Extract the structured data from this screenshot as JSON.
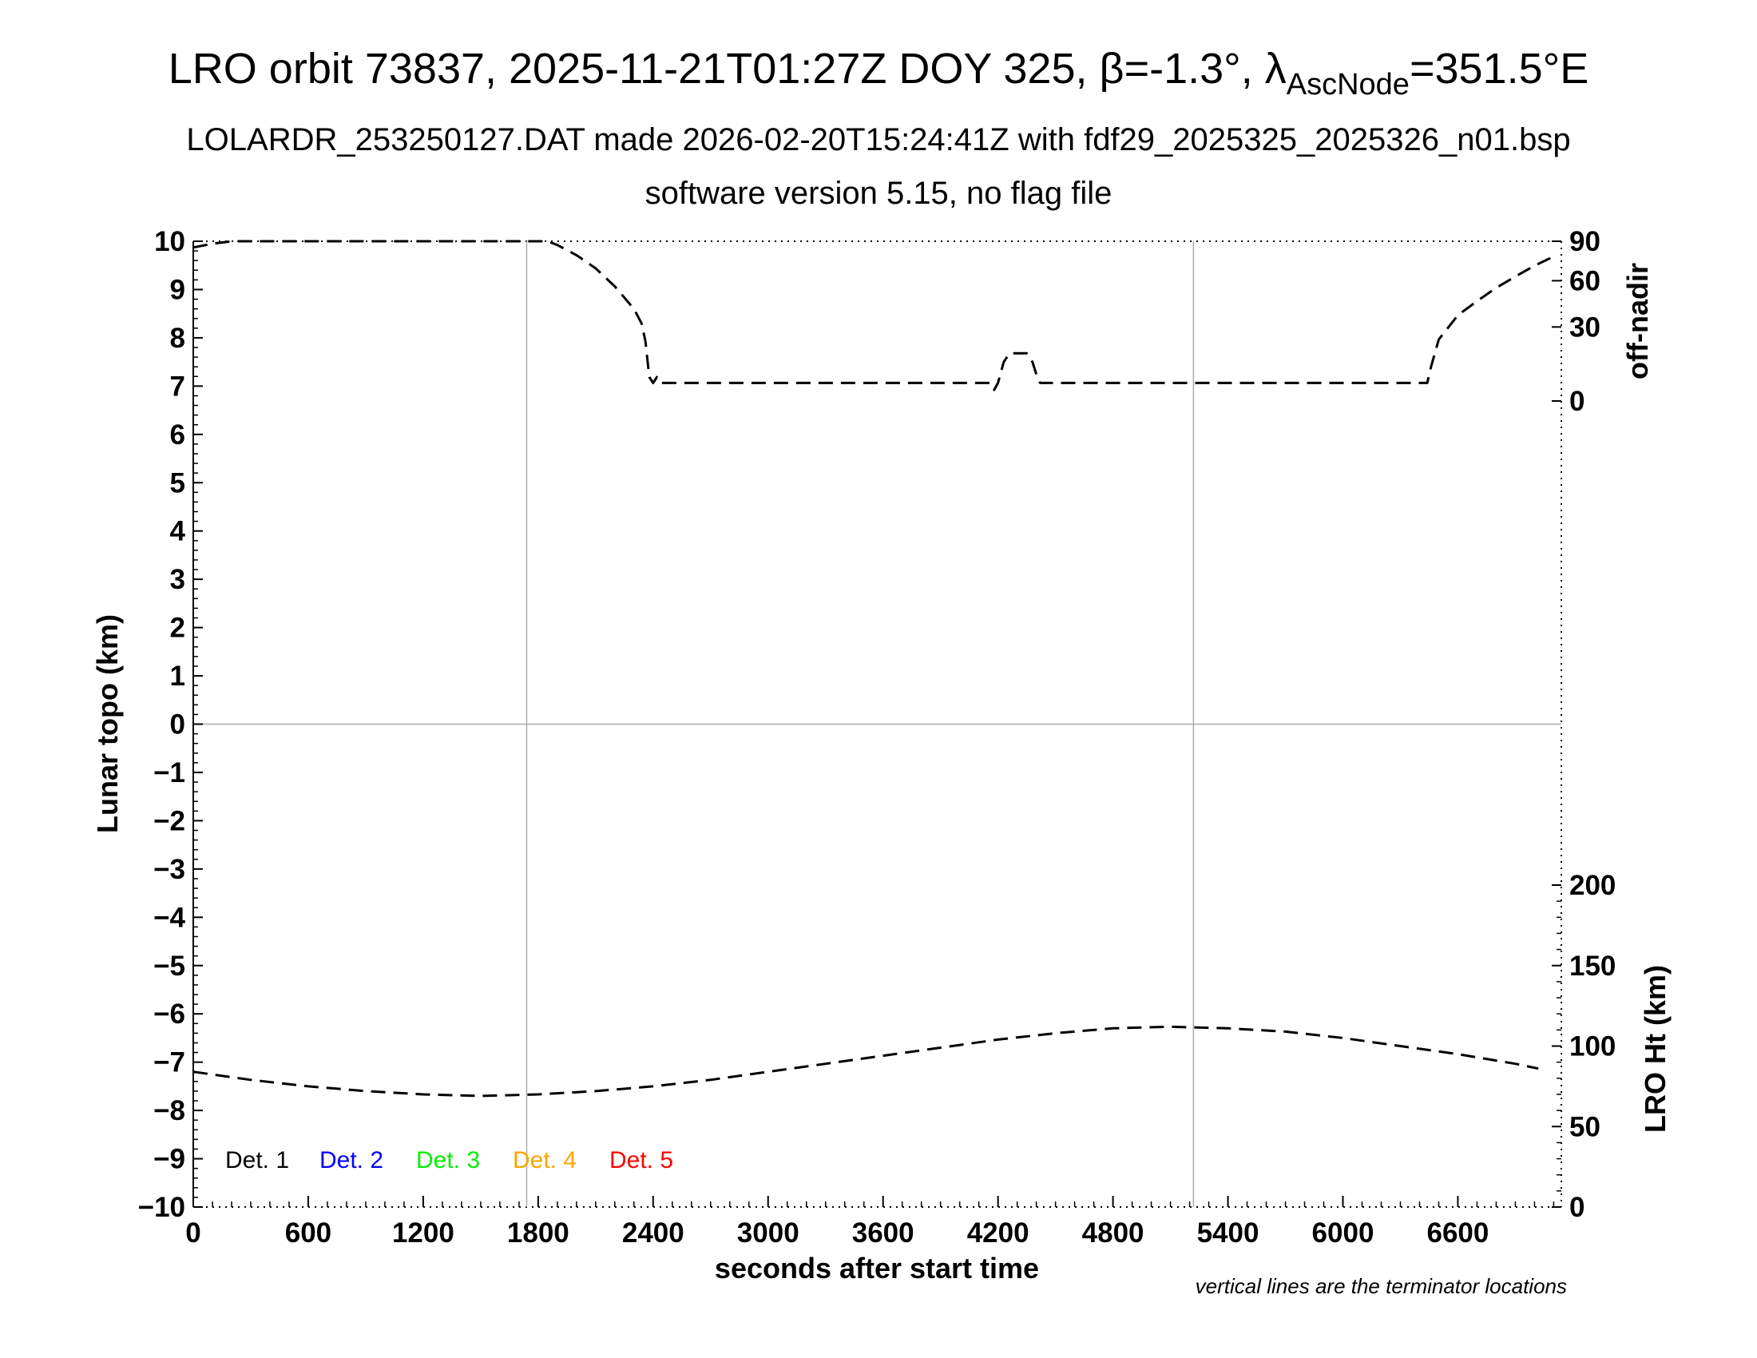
{
  "title": {
    "main_prefix": "LRO orbit 73837, 2025-11-21T01:27Z DOY 325, ",
    "beta_symbol": "β",
    "beta_text": "=-1.3°, ",
    "lambda_symbol": "λ",
    "lambda_subscript": "AscNode",
    "lambda_text": "=351.5°E"
  },
  "subtitle1": "LOLARDR_253250127.DAT made 2026-02-20T15:24:41Z with fdf29_2025325_2025326_n01.bsp",
  "subtitle2": "software version 5.15, no flag file",
  "footnote": "vertical lines are the terminator locations",
  "colors": {
    "det1": "#000000",
    "det2": "#0000ff",
    "det3": "#00ee00",
    "det4": "#ffa500",
    "det5": "#ff0000",
    "grid": "#aaaaaa"
  },
  "chart_data": {
    "type": "line",
    "xlabel": "seconds after start time",
    "xlim": [
      0,
      7140
    ],
    "xticks": [
      0,
      600,
      1200,
      1800,
      2400,
      3000,
      3600,
      4200,
      4800,
      5400,
      6000,
      6600
    ],
    "x_tick_labels": [
      "0",
      "600",
      "1200",
      "1800",
      "2400",
      "3000",
      "3600",
      "4200",
      "4800",
      "5400",
      "6000",
      "6600"
    ],
    "ylabel_left": "Lunar topo (km)",
    "ylim_left": [
      -10,
      10
    ],
    "yticks_left": [
      10,
      9,
      8,
      7,
      6,
      5,
      4,
      3,
      2,
      1,
      0,
      -1,
      -2,
      -3,
      -4,
      -5,
      -6,
      -7,
      -8,
      -9,
      -10
    ],
    "y_tick_labels_left": [
      "10",
      "9",
      "8",
      "7",
      "6",
      "5",
      "4",
      "3",
      "2",
      "1",
      "0",
      "−1",
      "−2",
      "−3",
      "−4",
      "−5",
      "−6",
      "−7",
      "−8",
      "−9",
      "−10"
    ],
    "ylabel_right_top": "off-nadir",
    "off_nadir_ticks": [
      "90",
      "60",
      "30",
      "0"
    ],
    "ylabel_right_bottom": "LRO Ht (km)",
    "lro_ht_range": [
      0,
      200
    ],
    "lro_ht_ticks": [
      "200",
      "150",
      "100",
      "50",
      "0"
    ],
    "terminator_lines_x": [
      1740,
      5220
    ],
    "legend": [
      "Det. 1",
      "Det. 2",
      "Det. 3",
      "Det. 4",
      "Det. 5"
    ],
    "grid": "terminator lines and zero line",
    "series": [
      {
        "name": "off-nadir",
        "axis": "off-nadir (deg)",
        "style": "dashed",
        "x": [
          0,
          100,
          200,
          300,
          1700,
          1800,
          1850,
          1900,
          2000,
          2100,
          2200,
          2300,
          2340,
          2360,
          2380,
          2400,
          2420,
          2440,
          2460,
          4160,
          4180,
          4200,
          4230,
          4260,
          4350,
          4380,
          4400,
          4420,
          4440,
          4460,
          6420,
          6440,
          6460,
          6500,
          6600,
          6700,
          6800,
          6900,
          7000,
          7100
        ],
        "values": [
          85,
          88,
          90,
          90,
          90,
          90,
          90,
          87,
          79,
          69,
          56,
          41,
          32,
          22,
          6,
          4,
          6,
          4,
          4,
          4,
          2,
          4,
          12,
          16,
          16,
          12,
          7,
          4,
          4,
          4,
          4,
          4,
          10,
          23,
          37,
          46,
          55,
          63,
          71,
          78
        ]
      },
      {
        "name": "LRO Ht",
        "axis": "LRO Ht (km)",
        "style": "dashed",
        "x": [
          0,
          300,
          600,
          900,
          1200,
          1500,
          1800,
          2100,
          2400,
          2700,
          3000,
          3300,
          3600,
          3900,
          4200,
          4500,
          4800,
          5100,
          5400,
          5700,
          6000,
          6300,
          6600,
          6900,
          7020
        ],
        "values": [
          84,
          79,
          75,
          72,
          70,
          69,
          70,
          72,
          75,
          79,
          84,
          89,
          94,
          99,
          104,
          108,
          111,
          112,
          111,
          109,
          105,
          100,
          95,
          89,
          86
        ]
      }
    ]
  }
}
